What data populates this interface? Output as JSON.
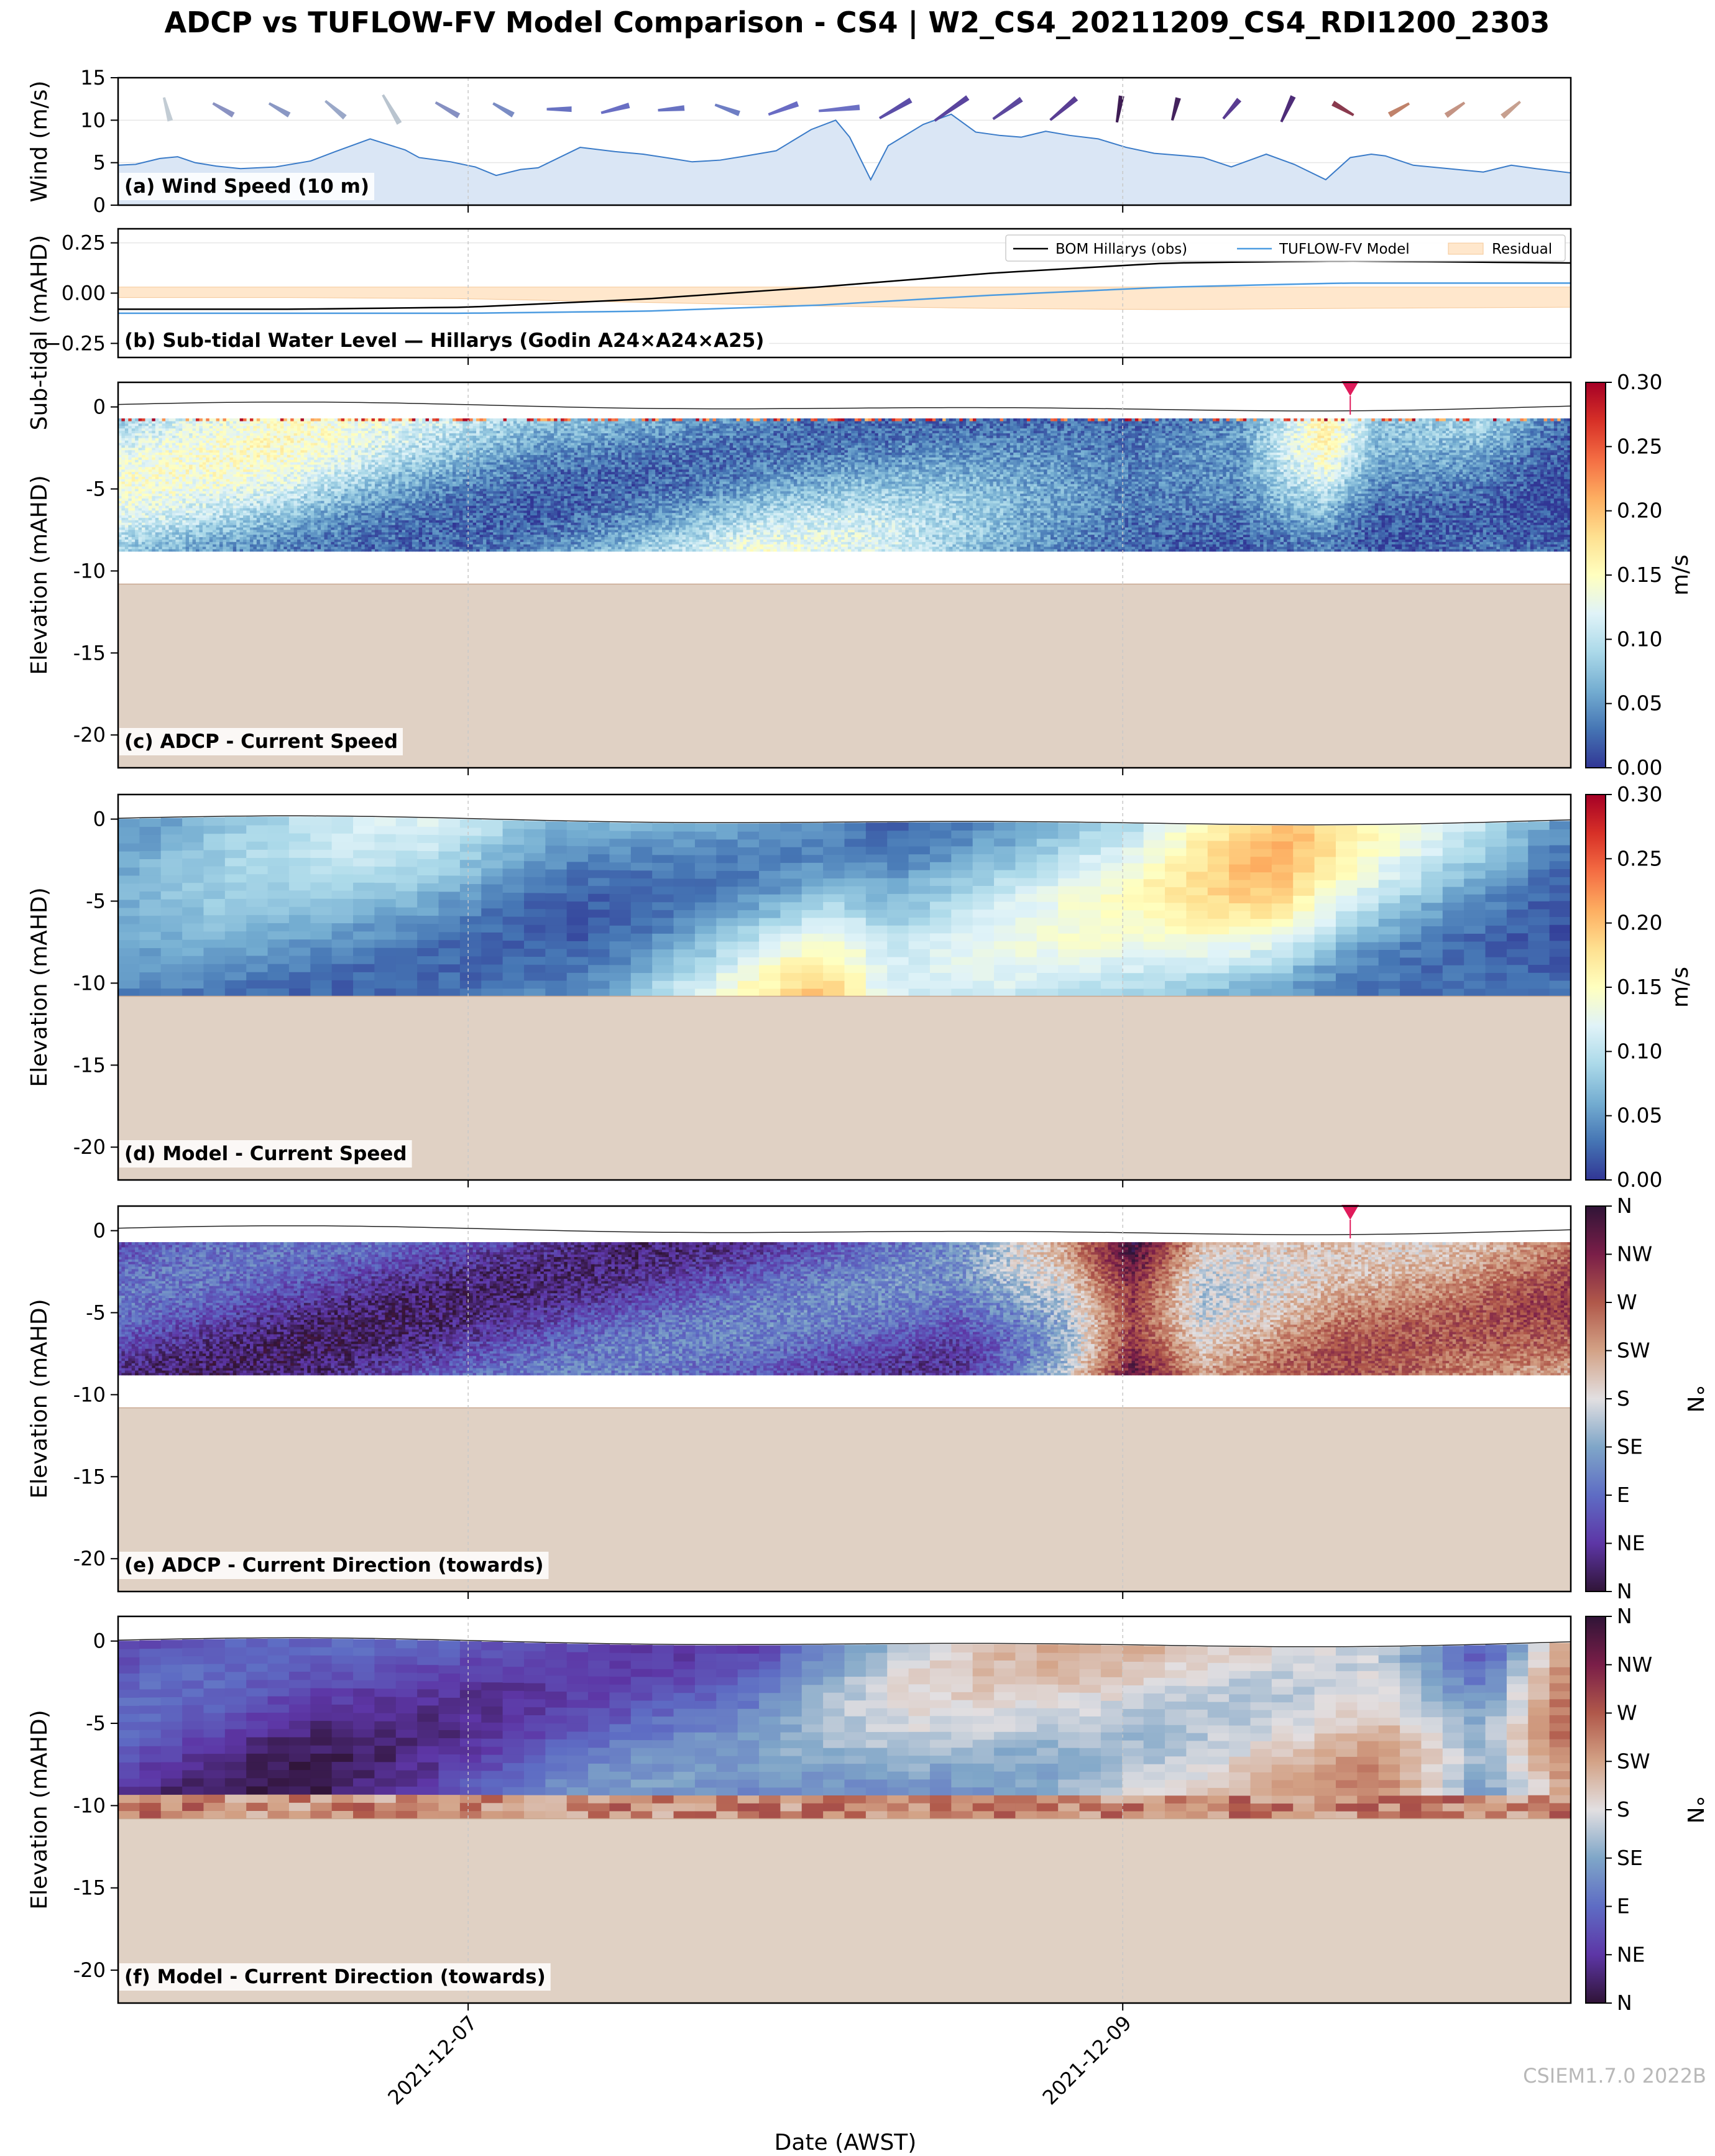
{
  "title": "ADCP vs TUFLOW-FV Model Comparison - CS4 | W2_CS4_20211209_CS4_RDI1200_2303",
  "xlabel": "Date (AWST)",
  "xtick_labels": [
    "2021-12-07",
    "2021-12-09"
  ],
  "watermark": "CSIEM1.7.0 2022B",
  "colors": {
    "wind_fill": "#dae6f5",
    "wind_line": "#3a7bc8",
    "obs_line": "#000000",
    "model_line": "#4c9be0",
    "residual_fill": "#ffe7cc",
    "seabed": "#e0d1c4",
    "marker": "#e01b5b"
  },
  "chart_data": [
    {
      "id": "a",
      "type": "area",
      "label": "(a) Wind Speed (10 m)",
      "ylabel": "Wind (m/s)",
      "ylim": [
        0,
        15
      ],
      "yticks": [
        0,
        5,
        10,
        15
      ],
      "xlim_days": [
        0,
        4.15
      ],
      "x_days": [
        0,
        0.05,
        0.12,
        0.17,
        0.22,
        0.28,
        0.35,
        0.45,
        0.55,
        0.62,
        0.72,
        0.82,
        0.86,
        0.95,
        1.02,
        1.08,
        1.15,
        1.2,
        1.32,
        1.42,
        1.5,
        1.58,
        1.64,
        1.72,
        1.78,
        1.88,
        1.98,
        2.05,
        2.09,
        2.15,
        2.2,
        2.3,
        2.38,
        2.45,
        2.52,
        2.58,
        2.65,
        2.72,
        2.8,
        2.88,
        2.96,
        3.05,
        3.1,
        3.18,
        3.28,
        3.36,
        3.45,
        3.52,
        3.58,
        3.62,
        3.7,
        3.8,
        3.9,
        3.98,
        4.05,
        4.15
      ],
      "y_wind": [
        4.7,
        4.8,
        5.5,
        5.7,
        5.0,
        4.6,
        4.3,
        4.5,
        5.2,
        6.3,
        7.8,
        6.5,
        5.6,
        5.1,
        4.5,
        3.5,
        4.2,
        4.4,
        6.8,
        6.3,
        6.0,
        5.5,
        5.1,
        5.3,
        5.7,
        6.4,
        8.9,
        10.0,
        8.0,
        3.0,
        7.0,
        9.5,
        10.7,
        8.6,
        8.2,
        8.0,
        8.7,
        8.2,
        7.8,
        6.8,
        6.1,
        5.8,
        5.6,
        4.5,
        6.0,
        4.8,
        3.0,
        5.6,
        6.0,
        5.8,
        4.7,
        4.3,
        3.9,
        4.7,
        4.3,
        3.8
      ],
      "arrows": [
        {
          "x": 0.14,
          "dir": 345,
          "color": "#c2ccd4",
          "speed": 4.8
        },
        {
          "x": 0.3,
          "dir": 300,
          "color": "#8a92c2",
          "speed": 4.6
        },
        {
          "x": 0.46,
          "dir": 300,
          "color": "#8a98c4",
          "speed": 4.5
        },
        {
          "x": 0.62,
          "dir": 310,
          "color": "#9aa8c8",
          "speed": 5.2
        },
        {
          "x": 0.78,
          "dir": 330,
          "color": "#b9c4cf",
          "speed": 7.5
        },
        {
          "x": 0.94,
          "dir": 300,
          "color": "#8690c2",
          "speed": 5.6
        },
        {
          "x": 1.1,
          "dir": 300,
          "color": "#7a8cc4",
          "speed": 4.5
        },
        {
          "x": 1.26,
          "dir": 270,
          "color": "#6872c2",
          "speed": 5.0
        },
        {
          "x": 1.42,
          "dir": 255,
          "color": "#6a6fc4",
          "speed": 6.3
        },
        {
          "x": 1.58,
          "dir": 265,
          "color": "#6872c2",
          "speed": 5.5
        },
        {
          "x": 1.74,
          "dir": 290,
          "color": "#6e7ec4",
          "speed": 5.3
        },
        {
          "x": 1.9,
          "dir": 250,
          "color": "#6a6cc4",
          "speed": 7.0
        },
        {
          "x": 2.06,
          "dir": 265,
          "color": "#6c70c4",
          "speed": 10.0
        },
        {
          "x": 2.22,
          "dir": 240,
          "color": "#5c4ea8",
          "speed": 8.5
        },
        {
          "x": 2.38,
          "dir": 235,
          "color": "#5a449e",
          "speed": 9.8
        },
        {
          "x": 2.54,
          "dir": 235,
          "color": "#5c489e",
          "speed": 8.0
        },
        {
          "x": 2.7,
          "dir": 230,
          "color": "#5a3e94",
          "speed": 7.8
        },
        {
          "x": 2.86,
          "dir": 190,
          "color": "#3e1c54",
          "speed": 5.6
        },
        {
          "x": 3.02,
          "dir": 195,
          "color": "#44235e",
          "speed": 4.5
        },
        {
          "x": 3.18,
          "dir": 220,
          "color": "#5a3c92",
          "speed": 5.0
        },
        {
          "x": 3.34,
          "dir": 205,
          "color": "#4e2c78",
          "speed": 6.0
        },
        {
          "x": 3.5,
          "dir": 120,
          "color": "#8a3a4e",
          "speed": 4.7
        },
        {
          "x": 3.66,
          "dir": 60,
          "color": "#c0826a",
          "speed": 4.4
        },
        {
          "x": 3.82,
          "dir": 55,
          "color": "#c49484",
          "speed": 4.3
        },
        {
          "x": 3.98,
          "dir": 50,
          "color": "#c7a08f",
          "speed": 4.5
        }
      ]
    },
    {
      "id": "b",
      "type": "line",
      "label": "(b) Sub-tidal Water Level — Hillarys (Godin A24×A24×A25)",
      "ylabel": "Sub-tidal (mAHD)",
      "ylim": [
        -0.32,
        0.32
      ],
      "yticks": [
        -0.25,
        0.0,
        0.25
      ],
      "ytick_labels": [
        "−0.25",
        "0.00",
        "0.25"
      ],
      "legend": [
        "BOM Hillarys (obs)",
        "TUFLOW-FV Model",
        "Residual"
      ],
      "x_days": [
        0,
        0.5,
        1.0,
        1.5,
        2.0,
        2.5,
        3.0,
        3.5,
        4.15
      ],
      "obs": [
        -0.08,
        -0.08,
        -0.07,
        -0.03,
        0.03,
        0.1,
        0.15,
        0.16,
        0.15
      ],
      "model": [
        -0.1,
        -0.1,
        -0.1,
        -0.09,
        -0.06,
        -0.01,
        0.03,
        0.05,
        0.05
      ]
    },
    {
      "id": "c",
      "type": "heatmap",
      "label": "(c) ADCP - Current Speed",
      "ylabel": "Elevation (mAHD)",
      "ylim": [
        -22,
        1.5
      ],
      "yticks": [
        0,
        -5,
        -10,
        -15,
        -20
      ],
      "data_bottom": -8.8,
      "seabed_top": -10.8,
      "colormap": "RdYlBu_r",
      "cbar_label": "m/s",
      "cbar_ticks": [
        "0.00",
        "0.05",
        "0.10",
        "0.15",
        "0.20",
        "0.25",
        "0.30"
      ],
      "marker_x": 3.52,
      "speed_profile_x": [
        0,
        0.5,
        0.8,
        1.2,
        1.5,
        1.8,
        2.1,
        2.4,
        2.6,
        2.9,
        3.2,
        3.45,
        3.6,
        3.9,
        4.15
      ],
      "speed_profile_v": [
        0.11,
        0.12,
        0.1,
        0.08,
        0.1,
        0.12,
        0.1,
        0.07,
        0.05,
        0.03,
        0.04,
        0.13,
        0.06,
        0.08,
        0.03
      ]
    },
    {
      "id": "d",
      "type": "heatmap",
      "label": "(d) Model - Current Speed",
      "ylabel": "Elevation (mAHD)",
      "ylim": [
        -22,
        1.5
      ],
      "yticks": [
        0,
        -5,
        -10,
        -15,
        -20
      ],
      "data_bottom": -10.8,
      "seabed_top": -10.8,
      "colormap": "RdYlBu_r",
      "cbar_label": "m/s",
      "cbar_ticks": [
        "0.00",
        "0.05",
        "0.10",
        "0.15",
        "0.20",
        "0.25",
        "0.30"
      ],
      "speed_profile_x": [
        0,
        0.5,
        0.9,
        1.3,
        1.7,
        2.0,
        2.2,
        2.5,
        2.9,
        3.3,
        3.6,
        3.9,
        4.15
      ],
      "speed_profile_v": [
        0.05,
        0.08,
        0.1,
        0.07,
        0.13,
        0.16,
        0.09,
        0.1,
        0.12,
        0.17,
        0.12,
        0.09,
        0.05
      ]
    },
    {
      "id": "e",
      "type": "heatmap",
      "label": "(e) ADCP - Current Direction (towards)",
      "ylabel": "Elevation (mAHD)",
      "ylim": [
        -22,
        1.5
      ],
      "yticks": [
        0,
        -5,
        -10,
        -15,
        -20
      ],
      "data_bottom": -8.8,
      "seabed_top": -10.8,
      "colormap": "twilight_shifted",
      "cbar_label": "°N",
      "cbar_ticks": [
        "N",
        "NE",
        "E",
        "SE",
        "S",
        "SW",
        "W",
        "NW",
        "N"
      ],
      "marker_x": 3.52,
      "dir_profile_x": [
        0,
        0.6,
        1.2,
        1.8,
        2.4,
        2.7,
        2.9,
        3.1,
        3.3,
        3.5,
        3.8,
        4.15
      ],
      "dir_profile_d": [
        60,
        55,
        65,
        70,
        80,
        180,
        330,
        200,
        220,
        240,
        230,
        250
      ]
    },
    {
      "id": "f",
      "type": "heatmap",
      "label": "(f) Model - Current Direction (towards)",
      "ylabel": "Elevation (mAHD)",
      "ylim": [
        -22,
        1.5
      ],
      "yticks": [
        0,
        -5,
        -10,
        -15,
        -20
      ],
      "data_bottom": -10.8,
      "seabed_top": -10.8,
      "colormap": "twilight_shifted",
      "cbar_label": "°N",
      "cbar_ticks": [
        "N",
        "NE",
        "E",
        "SE",
        "S",
        "SW",
        "W",
        "NW",
        "N"
      ],
      "dir_profile_x": [
        0,
        0.5,
        0.9,
        1.3,
        1.8,
        2.3,
        2.8,
        3.2,
        3.6,
        3.9,
        4.15
      ],
      "dir_profile_d": [
        50,
        45,
        70,
        90,
        85,
        150,
        190,
        200,
        210,
        100,
        230
      ]
    }
  ]
}
